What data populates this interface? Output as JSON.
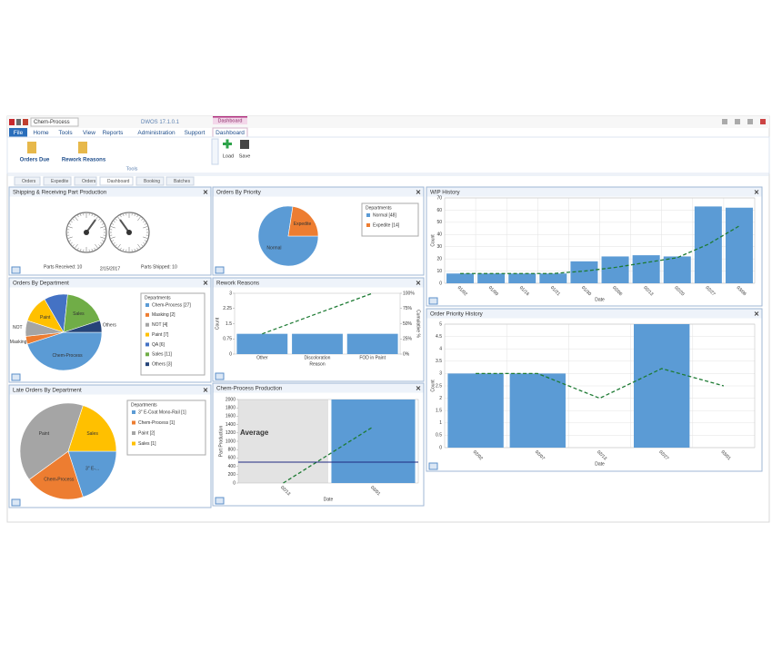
{
  "app": {
    "document_name": "Chem-Process",
    "window_title": "DWOS 17.1.0.1",
    "context_tab_group": "Dashboard",
    "menu": [
      "File",
      "Home",
      "Tools",
      "View",
      "Reports",
      "Administration",
      "Support",
      "Dashboard"
    ],
    "ribbon": {
      "buttons": [
        "Orders Due",
        "Rework Reasons"
      ],
      "group": "Tools",
      "actions": [
        "Load",
        "Save"
      ]
    },
    "tabs": [
      "Orders",
      "Expedite",
      "Orders",
      "Dashboard",
      "Booking",
      "Batches"
    ]
  },
  "shipping_panel": {
    "title": "Shipping & Receiving Part Production",
    "received": "Parts Received: 10",
    "date": "2/15/2017",
    "shipped": "Parts Shipped: 10"
  },
  "chart_data": [
    {
      "type": "pie",
      "title": "Orders By Priority",
      "categories": [
        "Normal",
        "Expedite"
      ],
      "values": [
        48,
        14
      ],
      "colors": [
        "#5b9bd5",
        "#ed7d31"
      ],
      "legend_title": "Departments",
      "legend_labels": [
        "Normal [48]",
        "Expedite [14]"
      ]
    },
    {
      "type": "bar_line",
      "title": "WIP History",
      "categories": [
        "01/02",
        "01/09",
        "01/16",
        "01/21",
        "01/30",
        "02/06",
        "02/13",
        "02/20",
        "02/27",
        "03/06"
      ],
      "series": [
        {
          "style": "bar",
          "color": "#5b9bd5",
          "values": [
            8,
            8,
            8,
            8,
            18,
            22,
            23,
            22,
            63,
            62
          ]
        },
        {
          "style": "line",
          "color": "#1e7b34",
          "values": [
            8,
            8,
            8,
            8,
            10,
            13,
            17,
            21,
            32,
            47
          ]
        }
      ],
      "ylim": [
        0,
        70
      ],
      "yticks": [
        0,
        10,
        20,
        30,
        40,
        50,
        60,
        70
      ],
      "ylabel": "Count",
      "xlabel": "Date",
      "grid": true
    },
    {
      "type": "pie",
      "title": "Orders By Department",
      "categories": [
        "Chem-Process",
        "Masking",
        "NOT",
        "Paint",
        null,
        "Sales",
        "Others"
      ],
      "values": [
        27,
        2,
        4,
        7,
        6,
        11,
        3
      ],
      "colors": [
        "#5b9bd5",
        "#ed7d31",
        "#a5a5a5",
        "#ffc000",
        "#4472c4",
        "#70ad47",
        "#264478"
      ],
      "legend_title": "Departments",
      "legend_labels": [
        "Chem-Process [27]",
        "Masking [2]",
        "NOT [4]",
        "Paint [7]",
        "QA [6]",
        "Sales [11]",
        "Others [3]"
      ]
    },
    {
      "type": "bar_line",
      "title": "Rework Reasons",
      "categories": [
        "Other",
        "Discoloration",
        "FOD in Paint"
      ],
      "series": [
        {
          "style": "bar",
          "color": "#5b9bd5",
          "values": [
            1,
            1,
            1
          ]
        },
        {
          "style": "line",
          "color": "#1e7b34",
          "axis": "y2",
          "values": [
            33.3,
            66.7,
            100
          ]
        }
      ],
      "ylim": [
        0,
        3
      ],
      "yticks": [
        0,
        0.75,
        1.5,
        2.25,
        3
      ],
      "y2lim": [
        0,
        100
      ],
      "y2ticks": [
        {
          "value": 0,
          "label": "0%"
        },
        {
          "value": 25,
          "label": "25%"
        },
        {
          "value": 50,
          "label": "50%"
        },
        {
          "value": 75,
          "label": "75%"
        },
        {
          "value": 100,
          "label": "100%"
        }
      ],
      "ylabel": "Count",
      "y2label": "Cumulative %",
      "xlabel": "Reason",
      "grid": false
    },
    {
      "type": "bar_line",
      "title": "Order Priority History",
      "categories": [
        "02/02",
        "02/07",
        "02/13",
        "02/27",
        "03/01"
      ],
      "series": [
        {
          "style": "bar",
          "color": "#5b9bd5",
          "values": [
            3,
            3,
            0,
            5,
            0
          ]
        },
        {
          "style": "line",
          "color": "#1e7b34",
          "values": [
            3,
            3,
            2,
            3.2,
            2.5
          ]
        }
      ],
      "ylim": [
        0,
        5
      ],
      "yticks": [
        0,
        0.5,
        1,
        1.5,
        2,
        2.5,
        3,
        3.5,
        4,
        4.5,
        5
      ],
      "ylabel": "Count",
      "xlabel": "Date",
      "grid": true
    },
    {
      "type": "pie",
      "title": "Late Orders By Department",
      "categories": [
        "3\" E-...",
        "Chem-Process",
        "Paint",
        "Sales"
      ],
      "values": [
        1,
        1,
        2,
        1
      ],
      "colors": [
        "#5b9bd5",
        "#ed7d31",
        "#a5a5a5",
        "#ffc000"
      ],
      "legend_title": "Departments",
      "legend_labels": [
        "3\" E-Coat Mono-Rail [1]",
        "Chem-Process [1]",
        "Paint [2]",
        "Sales [1]"
      ]
    },
    {
      "type": "bar_line",
      "title": "Chem-Process Production",
      "categories": [
        "02/13",
        "03/01"
      ],
      "series": [
        {
          "style": "bar",
          "color": "#5b9bd5",
          "values": [
            0,
            2000
          ]
        },
        {
          "style": "line",
          "color": "#1e7b34",
          "values": [
            0,
            1350
          ]
        }
      ],
      "reference_line": {
        "label": "Average",
        "value": 500,
        "color": "#1f2a80"
      },
      "ylim": [
        0,
        2000
      ],
      "yticks": [
        0,
        200,
        400,
        600,
        800,
        1000,
        1200,
        1400,
        1600,
        1800,
        2000
      ],
      "ylabel": "Part Production",
      "xlabel": "Date",
      "grid": false
    }
  ]
}
